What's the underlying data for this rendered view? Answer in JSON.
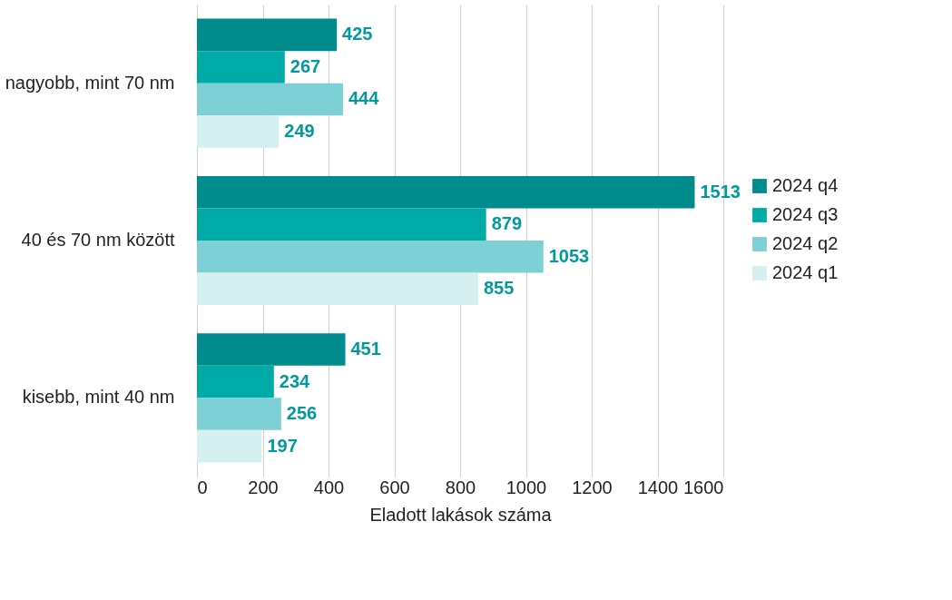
{
  "chart_data": {
    "type": "bar",
    "orientation": "horizontal",
    "xlabel": "Eladott lakások száma",
    "categories": [
      "nagyobb, mint 70 nm",
      "40 és 70 nm között",
      "kisebb, mint 40 nm"
    ],
    "series": [
      {
        "name": "2024 q4",
        "color": "#008b8c",
        "values": [
          425,
          1513,
          451
        ]
      },
      {
        "name": "2024 q3",
        "color": "#00aaa6",
        "values": [
          267,
          879,
          234
        ]
      },
      {
        "name": "2024 q2",
        "color": "#7dd0d5",
        "values": [
          444,
          1053,
          256
        ]
      },
      {
        "name": "2024 q1",
        "color": "#d6f0f1",
        "values": [
          249,
          855,
          197
        ]
      }
    ],
    "xlim": [
      0,
      1600
    ],
    "xticks": [
      0,
      200,
      400,
      600,
      800,
      1000,
      1200,
      1400,
      1600
    ],
    "grid": "x",
    "legend": "right",
    "data_labels": true
  }
}
